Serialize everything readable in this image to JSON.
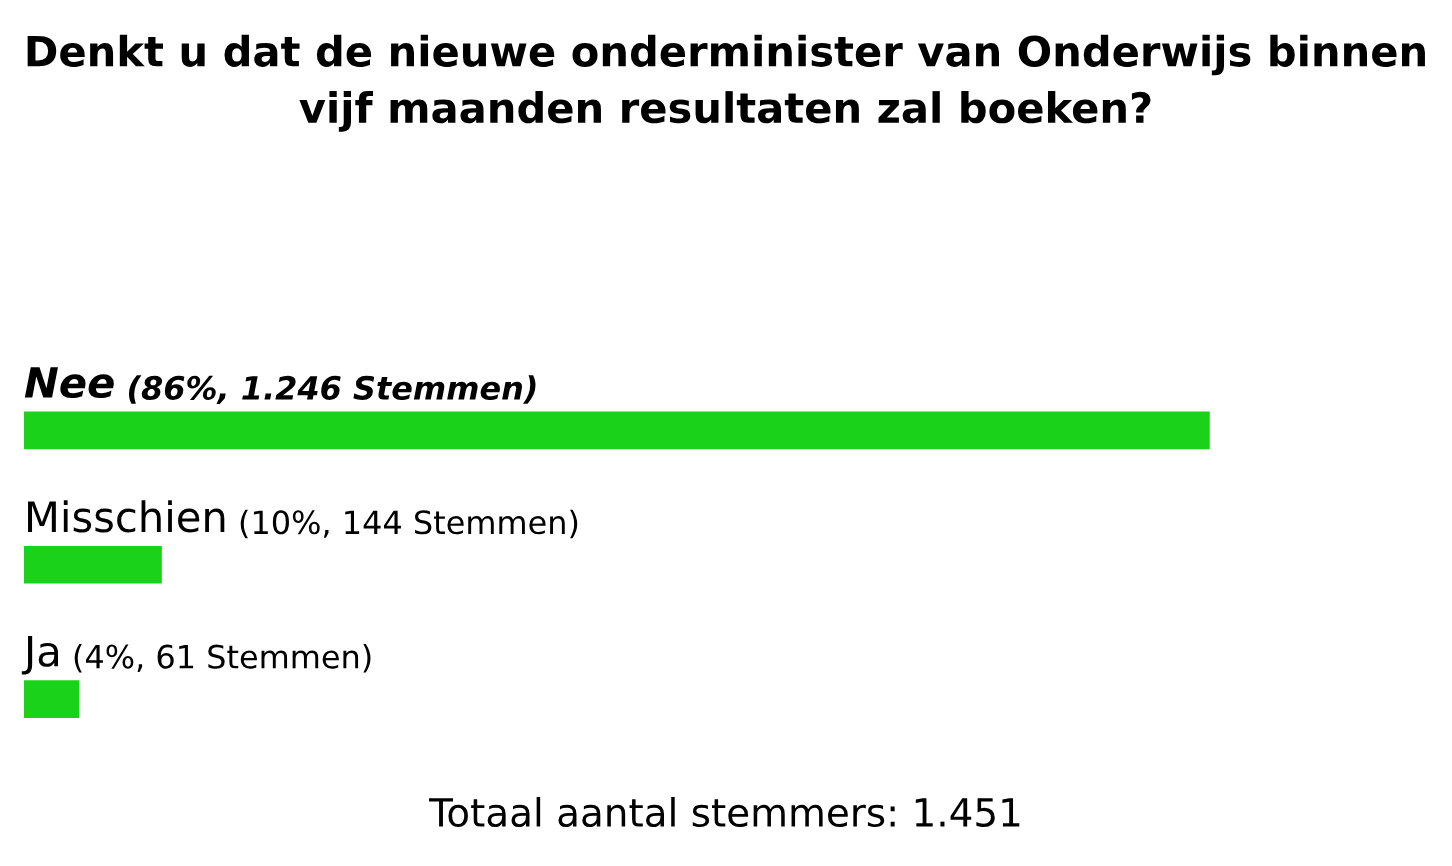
{
  "chart_data": {
    "type": "bar",
    "orientation": "horizontal",
    "title": "Denkt u dat de nieuwe onderminister van Onderwijs binnen vijf maanden resultaten zal boeken?",
    "categories": [
      "Nee",
      "Misschien",
      "Ja"
    ],
    "values": [
      86,
      10,
      4
    ],
    "value_labels": [
      "(86%, 1.246 Stemmen)",
      "(10%, 144 Stemmen)",
      "(4%, 61 Stemmen)"
    ],
    "color": "#19d219",
    "annotations": [
      "Totaal aantal stemmers: 1.451"
    ]
  }
}
